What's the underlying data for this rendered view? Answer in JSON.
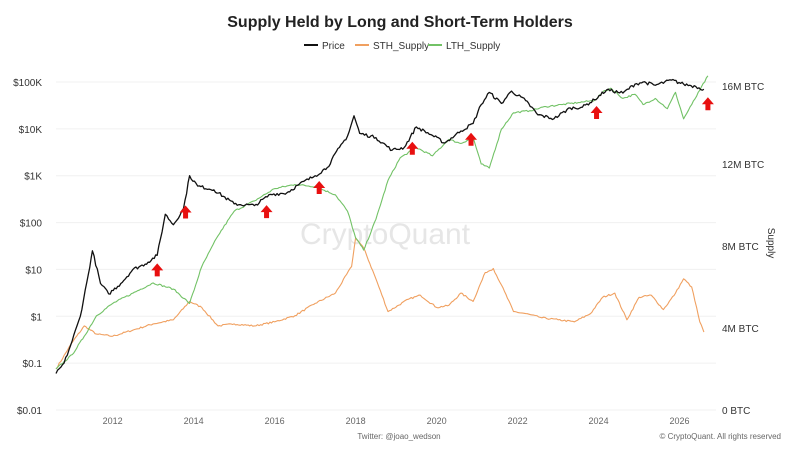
{
  "chart_data": {
    "type": "line",
    "title": "Supply Held by Long and Short-Term Holders",
    "legend": [
      "Price",
      "STH_Supply",
      "LTH_Supply"
    ],
    "legend_position": "top-center",
    "grid": "horizontal",
    "watermark": "CryptoQuant",
    "footer_left": "Twitter: @joao_wedson",
    "footer_right": "© CryptoQuant. All rights reserved",
    "x_axis": {
      "range": [
        2010.6,
        2026.9
      ],
      "ticks": [
        "2012",
        "2014",
        "2016",
        "2018",
        "2020",
        "2022",
        "2024",
        "2026"
      ]
    },
    "y_left": {
      "scale": "log",
      "range": [
        0.01,
        100000
      ],
      "ticks": [
        "$100K",
        "$10K",
        "$1K",
        "$100",
        "$10",
        "$1",
        "$0.1",
        "$0.01"
      ]
    },
    "y_right": {
      "title": "Supply",
      "range": [
        0,
        16000000
      ],
      "ticks": [
        "16M BTC",
        "12M BTC",
        "8M BTC",
        "4M BTC",
        "0 BTC"
      ]
    },
    "colors": {
      "price": "#111111",
      "sth": "#f0a060",
      "lth": "#72c266",
      "arrow": "#e81010"
    },
    "series": [
      {
        "name": "Price",
        "axis": "left",
        "color": "#111111",
        "x": [
          2010.6,
          2010.8,
          2011.0,
          2011.2,
          2011.4,
          2011.5,
          2011.7,
          2011.9,
          2012.2,
          2012.5,
          2012.8,
          2013.1,
          2013.3,
          2013.5,
          2013.75,
          2013.9,
          2014.1,
          2014.5,
          2015.0,
          2015.5,
          2015.9,
          2016.3,
          2016.6,
          2017.0,
          2017.3,
          2017.6,
          2017.8,
          2017.96,
          2018.1,
          2018.5,
          2018.9,
          2019.2,
          2019.5,
          2019.9,
          2020.2,
          2020.6,
          2020.9,
          2021.1,
          2021.3,
          2021.6,
          2021.85,
          2022.2,
          2022.5,
          2022.9,
          2023.3,
          2023.6,
          2023.9,
          2024.2,
          2024.6,
          2024.9,
          2025.1,
          2025.4,
          2025.8,
          2026.1,
          2026.4,
          2026.6
        ],
        "values": [
          0.06,
          0.1,
          0.3,
          1,
          8,
          25,
          5,
          3,
          5,
          10,
          13,
          20,
          150,
          90,
          200,
          1000,
          600,
          500,
          250,
          230,
          400,
          430,
          650,
          1000,
          1500,
          4000,
          7000,
          19000,
          8000,
          6500,
          3500,
          4000,
          11000,
          7200,
          5000,
          9000,
          13000,
          33000,
          60000,
          35000,
          64000,
          40000,
          20000,
          16500,
          28000,
          29000,
          42000,
          68000,
          58000,
          90000,
          100000,
          85000,
          110000,
          90000,
          80000,
          70000
        ]
      },
      {
        "name": "STH_Supply",
        "axis": "right",
        "color": "#f0a060",
        "x": [
          2010.6,
          2011.0,
          2011.3,
          2011.6,
          2012.0,
          2012.5,
          2013.0,
          2013.5,
          2013.9,
          2014.2,
          2014.6,
          2015.0,
          2015.5,
          2016.0,
          2016.5,
          2017.0,
          2017.5,
          2017.9,
          2018.0,
          2018.2,
          2018.5,
          2018.8,
          2019.3,
          2019.6,
          2020.0,
          2020.3,
          2020.6,
          2020.9,
          2021.2,
          2021.4,
          2021.6,
          2021.9,
          2022.2,
          2022.6,
          2023.0,
          2023.4,
          2023.8,
          2024.1,
          2024.4,
          2024.7,
          2025.0,
          2025.3,
          2025.6,
          2025.9,
          2026.1,
          2026.3,
          2026.5,
          2026.6
        ],
        "values": [
          2.0,
          3.3,
          4.1,
          3.7,
          3.6,
          3.9,
          4.2,
          4.4,
          5.3,
          5.0,
          4.1,
          4.2,
          4.1,
          4.3,
          4.6,
          5.2,
          5.7,
          7.0,
          8.4,
          7.9,
          6.4,
          4.8,
          5.4,
          5.6,
          5.0,
          5.1,
          5.7,
          5.3,
          6.7,
          6.9,
          6.1,
          4.8,
          4.7,
          4.5,
          4.4,
          4.3,
          4.7,
          5.5,
          5.7,
          4.4,
          5.5,
          5.6,
          4.9,
          5.7,
          6.4,
          6.0,
          4.3,
          3.8
        ]
      },
      {
        "name": "LTH_Supply",
        "axis": "right",
        "color": "#72c266",
        "x": [
          2010.6,
          2011.0,
          2011.3,
          2011.6,
          2012.0,
          2012.5,
          2013.0,
          2013.5,
          2013.9,
          2014.2,
          2014.6,
          2015.0,
          2015.5,
          2016.0,
          2016.5,
          2017.0,
          2017.5,
          2017.8,
          2018.0,
          2018.2,
          2018.5,
          2018.8,
          2019.1,
          2019.5,
          2019.9,
          2020.3,
          2020.6,
          2020.9,
          2021.1,
          2021.3,
          2021.6,
          2021.9,
          2022.3,
          2022.7,
          2023.1,
          2023.5,
          2023.9,
          2024.1,
          2024.3,
          2024.6,
          2024.9,
          2025.1,
          2025.4,
          2025.7,
          2025.9,
          2026.1,
          2026.3,
          2026.5,
          2026.7
        ],
        "values": [
          2.0,
          2.7,
          3.6,
          4.6,
          5.2,
          5.7,
          6.2,
          5.9,
          5.2,
          7.0,
          8.5,
          9.7,
          10.2,
          10.8,
          11.0,
          10.9,
          10.5,
          9.7,
          8.4,
          7.8,
          9.3,
          11.2,
          12.3,
          12.8,
          12.4,
          13.2,
          13.0,
          13.3,
          12.0,
          11.8,
          13.7,
          14.5,
          14.6,
          14.8,
          14.9,
          15.0,
          15.1,
          15.5,
          15.7,
          15.2,
          15.4,
          14.9,
          15.2,
          14.7,
          15.5,
          14.2,
          14.9,
          15.6,
          16.3
        ]
      }
    ],
    "annotations": {
      "type": "up-arrow",
      "x": [
        2013.1,
        2013.8,
        2015.8,
        2017.1,
        2019.4,
        2020.85,
        2023.95,
        2026.7
      ]
    }
  }
}
